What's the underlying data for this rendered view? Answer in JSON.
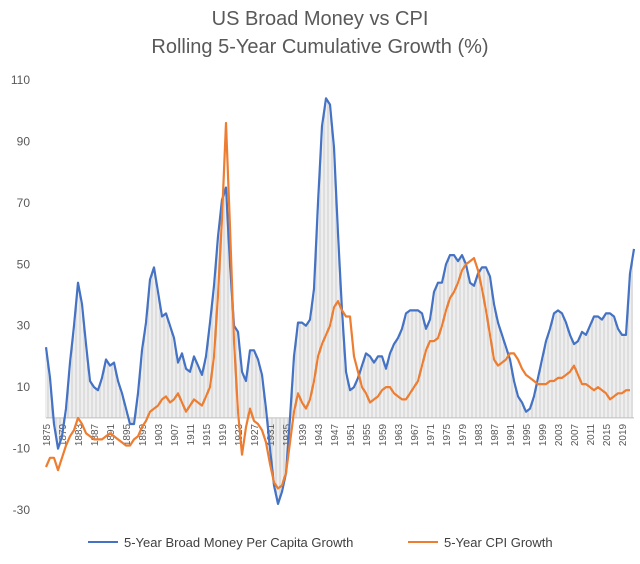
{
  "chart_data": {
    "type": "line",
    "title": "US Broad Money vs CPI",
    "subtitle": "Rolling 5-Year Cumulative Growth (%)",
    "xlabel": "",
    "ylabel": "",
    "ylim": [
      -30,
      110
    ],
    "yticks": [
      -30,
      -10,
      10,
      30,
      50,
      70,
      90,
      110
    ],
    "xlim": [
      1875,
      2022
    ],
    "xticks": [
      1875,
      1879,
      1883,
      1887,
      1891,
      1895,
      1899,
      1903,
      1907,
      1911,
      1915,
      1919,
      1923,
      1927,
      1931,
      1935,
      1939,
      1943,
      1947,
      1951,
      1955,
      1959,
      1963,
      1967,
      1971,
      1975,
      1979,
      1983,
      1987,
      1991,
      1995,
      1999,
      2003,
      2007,
      2011,
      2015,
      2019
    ],
    "legend": "bottom",
    "grid": false,
    "series": [
      {
        "name": "5-Year Broad Money Per Capita Growth",
        "color": "#4472C4",
        "points": [
          [
            1875,
            23
          ],
          [
            1876,
            13
          ],
          [
            1877,
            -2
          ],
          [
            1878,
            -10
          ],
          [
            1879,
            -6
          ],
          [
            1880,
            3
          ],
          [
            1881,
            18
          ],
          [
            1882,
            30
          ],
          [
            1883,
            44
          ],
          [
            1884,
            37
          ],
          [
            1885,
            24
          ],
          [
            1886,
            12
          ],
          [
            1887,
            10
          ],
          [
            1888,
            9
          ],
          [
            1889,
            13
          ],
          [
            1890,
            19
          ],
          [
            1891,
            17
          ],
          [
            1892,
            18
          ],
          [
            1893,
            12
          ],
          [
            1894,
            8
          ],
          [
            1895,
            3
          ],
          [
            1896,
            -2
          ],
          [
            1897,
            -2
          ],
          [
            1898,
            8
          ],
          [
            1899,
            22
          ],
          [
            1900,
            31
          ],
          [
            1901,
            45
          ],
          [
            1902,
            49
          ],
          [
            1903,
            41
          ],
          [
            1904,
            33
          ],
          [
            1905,
            34
          ],
          [
            1906,
            30
          ],
          [
            1907,
            26
          ],
          [
            1908,
            18
          ],
          [
            1909,
            21
          ],
          [
            1910,
            16
          ],
          [
            1911,
            15
          ],
          [
            1912,
            20
          ],
          [
            1913,
            17
          ],
          [
            1914,
            14
          ],
          [
            1915,
            20
          ],
          [
            1916,
            31
          ],
          [
            1917,
            43
          ],
          [
            1918,
            59
          ],
          [
            1919,
            71
          ],
          [
            1920,
            75
          ],
          [
            1921,
            50
          ],
          [
            1922,
            30
          ],
          [
            1923,
            28
          ],
          [
            1924,
            15
          ],
          [
            1925,
            12
          ],
          [
            1926,
            22
          ],
          [
            1927,
            22
          ],
          [
            1928,
            19
          ],
          [
            1929,
            14
          ],
          [
            1930,
            3
          ],
          [
            1931,
            -10
          ],
          [
            1932,
            -22
          ],
          [
            1933,
            -28
          ],
          [
            1934,
            -24
          ],
          [
            1935,
            -18
          ],
          [
            1936,
            0
          ],
          [
            1937,
            20
          ],
          [
            1938,
            31
          ],
          [
            1939,
            31
          ],
          [
            1940,
            30
          ],
          [
            1941,
            32
          ],
          [
            1942,
            42
          ],
          [
            1943,
            70
          ],
          [
            1944,
            95
          ],
          [
            1945,
            104
          ],
          [
            1946,
            102
          ],
          [
            1947,
            88
          ],
          [
            1948,
            60
          ],
          [
            1949,
            35
          ],
          [
            1950,
            15
          ],
          [
            1951,
            9
          ],
          [
            1952,
            10
          ],
          [
            1953,
            13
          ],
          [
            1954,
            17
          ],
          [
            1955,
            21
          ],
          [
            1956,
            20
          ],
          [
            1957,
            18
          ],
          [
            1958,
            20
          ],
          [
            1959,
            20
          ],
          [
            1960,
            16
          ],
          [
            1961,
            21
          ],
          [
            1962,
            24
          ],
          [
            1963,
            26
          ],
          [
            1964,
            29
          ],
          [
            1965,
            34
          ],
          [
            1966,
            35
          ],
          [
            1967,
            35
          ],
          [
            1968,
            35
          ],
          [
            1969,
            34
          ],
          [
            1970,
            29
          ],
          [
            1971,
            32
          ],
          [
            1972,
            41
          ],
          [
            1973,
            44
          ],
          [
            1974,
            44
          ],
          [
            1975,
            50
          ],
          [
            1976,
            53
          ],
          [
            1977,
            53
          ],
          [
            1978,
            51
          ],
          [
            1979,
            53
          ],
          [
            1980,
            50
          ],
          [
            1981,
            44
          ],
          [
            1982,
            43
          ],
          [
            1983,
            47
          ],
          [
            1984,
            49
          ],
          [
            1985,
            49
          ],
          [
            1986,
            46
          ],
          [
            1987,
            37
          ],
          [
            1988,
            31
          ],
          [
            1989,
            27
          ],
          [
            1990,
            23
          ],
          [
            1991,
            19
          ],
          [
            1992,
            12
          ],
          [
            1993,
            7
          ],
          [
            1994,
            5
          ],
          [
            1995,
            2
          ],
          [
            1996,
            3
          ],
          [
            1997,
            7
          ],
          [
            1998,
            13
          ],
          [
            1999,
            19
          ],
          [
            2000,
            25
          ],
          [
            2001,
            29
          ],
          [
            2002,
            34
          ],
          [
            2003,
            35
          ],
          [
            2004,
            34
          ],
          [
            2005,
            31
          ],
          [
            2006,
            27
          ],
          [
            2007,
            24
          ],
          [
            2008,
            25
          ],
          [
            2009,
            28
          ],
          [
            2010,
            27
          ],
          [
            2011,
            30
          ],
          [
            2012,
            33
          ],
          [
            2013,
            33
          ],
          [
            2014,
            32
          ],
          [
            2015,
            34
          ],
          [
            2016,
            34
          ],
          [
            2017,
            33
          ],
          [
            2018,
            29
          ],
          [
            2019,
            27
          ],
          [
            2020,
            27
          ],
          [
            2021,
            47
          ],
          [
            2022,
            55
          ]
        ]
      },
      {
        "name": "5-Year CPI Growth",
        "color": "#ED7D31",
        "points": [
          [
            1875,
            -16
          ],
          [
            1876,
            -13
          ],
          [
            1877,
            -13
          ],
          [
            1878,
            -17
          ],
          [
            1879,
            -13
          ],
          [
            1880,
            -9
          ],
          [
            1881,
            -6
          ],
          [
            1882,
            -4
          ],
          [
            1883,
            0
          ],
          [
            1884,
            -2
          ],
          [
            1885,
            -5
          ],
          [
            1886,
            -6
          ],
          [
            1887,
            -7
          ],
          [
            1888,
            -7
          ],
          [
            1889,
            -7
          ],
          [
            1890,
            -6
          ],
          [
            1891,
            -5
          ],
          [
            1892,
            -6
          ],
          [
            1893,
            -7
          ],
          [
            1894,
            -8
          ],
          [
            1895,
            -9
          ],
          [
            1896,
            -9
          ],
          [
            1897,
            -7
          ],
          [
            1898,
            -6
          ],
          [
            1899,
            -3
          ],
          [
            1900,
            -1
          ],
          [
            1901,
            2
          ],
          [
            1902,
            3
          ],
          [
            1903,
            4
          ],
          [
            1904,
            6
          ],
          [
            1905,
            7
          ],
          [
            1906,
            5
          ],
          [
            1907,
            6
          ],
          [
            1908,
            8
          ],
          [
            1909,
            5
          ],
          [
            1910,
            2
          ],
          [
            1911,
            4
          ],
          [
            1912,
            6
          ],
          [
            1913,
            5
          ],
          [
            1914,
            4
          ],
          [
            1915,
            7
          ],
          [
            1916,
            10
          ],
          [
            1917,
            20
          ],
          [
            1918,
            40
          ],
          [
            1919,
            65
          ],
          [
            1920,
            96
          ],
          [
            1921,
            62
          ],
          [
            1922,
            25
          ],
          [
            1923,
            2
          ],
          [
            1924,
            -12
          ],
          [
            1925,
            -3
          ],
          [
            1926,
            3
          ],
          [
            1927,
            -1
          ],
          [
            1928,
            -2
          ],
          [
            1929,
            -4
          ],
          [
            1930,
            -8
          ],
          [
            1931,
            -15
          ],
          [
            1932,
            -21
          ],
          [
            1933,
            -23
          ],
          [
            1934,
            -22
          ],
          [
            1935,
            -18
          ],
          [
            1936,
            -8
          ],
          [
            1937,
            2
          ],
          [
            1938,
            8
          ],
          [
            1939,
            5
          ],
          [
            1940,
            3
          ],
          [
            1941,
            6
          ],
          [
            1942,
            12
          ],
          [
            1943,
            20
          ],
          [
            1944,
            24
          ],
          [
            1945,
            27
          ],
          [
            1946,
            30
          ],
          [
            1947,
            36
          ],
          [
            1948,
            38
          ],
          [
            1949,
            35
          ],
          [
            1950,
            33
          ],
          [
            1951,
            33
          ],
          [
            1952,
            20
          ],
          [
            1953,
            15
          ],
          [
            1954,
            10
          ],
          [
            1955,
            8
          ],
          [
            1956,
            5
          ],
          [
            1957,
            6
          ],
          [
            1958,
            7
          ],
          [
            1959,
            9
          ],
          [
            1960,
            10
          ],
          [
            1961,
            10
          ],
          [
            1962,
            8
          ],
          [
            1963,
            7
          ],
          [
            1964,
            6
          ],
          [
            1965,
            6
          ],
          [
            1966,
            8
          ],
          [
            1967,
            10
          ],
          [
            1968,
            12
          ],
          [
            1969,
            17
          ],
          [
            1970,
            22
          ],
          [
            1971,
            25
          ],
          [
            1972,
            25
          ],
          [
            1973,
            26
          ],
          [
            1974,
            30
          ],
          [
            1975,
            35
          ],
          [
            1976,
            39
          ],
          [
            1977,
            41
          ],
          [
            1978,
            44
          ],
          [
            1979,
            48
          ],
          [
            1980,
            50
          ],
          [
            1981,
            51
          ],
          [
            1982,
            52
          ],
          [
            1983,
            48
          ],
          [
            1984,
            42
          ],
          [
            1985,
            35
          ],
          [
            1986,
            27
          ],
          [
            1987,
            19
          ],
          [
            1988,
            17
          ],
          [
            1989,
            18
          ],
          [
            1990,
            19
          ],
          [
            1991,
            21
          ],
          [
            1992,
            21
          ],
          [
            1993,
            19
          ],
          [
            1994,
            16
          ],
          [
            1995,
            14
          ],
          [
            1996,
            13
          ],
          [
            1997,
            12
          ],
          [
            1998,
            11
          ],
          [
            1999,
            11
          ],
          [
            2000,
            11
          ],
          [
            2001,
            12
          ],
          [
            2002,
            12
          ],
          [
            2003,
            13
          ],
          [
            2004,
            13
          ],
          [
            2005,
            14
          ],
          [
            2006,
            15
          ],
          [
            2007,
            17
          ],
          [
            2008,
            14
          ],
          [
            2009,
            11
          ],
          [
            2010,
            11
          ],
          [
            2011,
            10
          ],
          [
            2012,
            9
          ],
          [
            2013,
            10
          ],
          [
            2014,
            9
          ],
          [
            2015,
            8
          ],
          [
            2016,
            6
          ],
          [
            2017,
            7
          ],
          [
            2018,
            8
          ],
          [
            2019,
            8
          ],
          [
            2020,
            9
          ],
          [
            2021,
            9
          ]
        ]
      }
    ]
  }
}
